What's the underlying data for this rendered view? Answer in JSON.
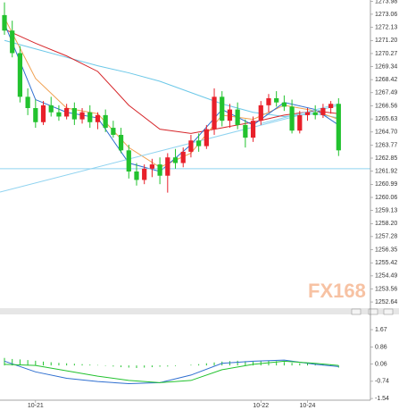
{
  "chart_data": [
    {
      "type": "candlestick",
      "up_color": "#e8202a",
      "down_color": "#22c22e",
      "xlim": [
        -0.575,
        47.1
      ],
      "ylim": [
        1252.2,
        1274.07
      ],
      "yticks": [
        1273.98,
        1273.06,
        1272.13,
        {
          "value": 1271.2,
          "label": "1271.20"
        },
        1270.27,
        1269.34,
        1268.42,
        1267.49,
        1266.56,
        1265.63,
        {
          "value": 1264.7,
          "label": "1264.70"
        },
        1263.77,
        1262.85,
        1261.92,
        1260.99,
        1260.06,
        1259.13,
        {
          "value": 1258.2,
          "label": "1258.20"
        },
        1257.28,
        1256.35,
        1255.42,
        1254.49,
        1253.56,
        1252.64
      ],
      "open": [
        1273.0,
        1271.9,
        1270.3,
        1267.2,
        1266.4,
        1265.4,
        1266.6,
        1266.1,
        1265.8,
        1266.4,
        1265.6,
        1266.1,
        1265.4,
        1265.9,
        1265.0,
        1264.5,
        1263.4,
        1261.9,
        1261.3,
        1262.1,
        1262.4,
        1261.6,
        1262.9,
        1262.5,
        1263.3,
        1264.1,
        1263.7,
        1264.9,
        1267.2,
        1265.5,
        1266.3,
        1265.2,
        1264.3,
        1265.5,
        1266.6,
        1267.1,
        1266.8,
        1266.5,
        1264.8,
        1265.9,
        1266.1,
        1265.9,
        1266.4,
        1266.7
      ],
      "high": [
        1273.9,
        1272.6,
        1270.8,
        1267.8,
        1267.0,
        1266.9,
        1267.2,
        1266.6,
        1266.7,
        1266.8,
        1266.4,
        1266.6,
        1266.1,
        1266.3,
        1265.5,
        1265.0,
        1263.8,
        1262.5,
        1262.4,
        1262.8,
        1262.9,
        1263.2,
        1263.5,
        1263.6,
        1264.5,
        1264.6,
        1265.2,
        1267.8,
        1267.6,
        1266.7,
        1266.8,
        1265.6,
        1265.8,
        1266.9,
        1267.4,
        1267.6,
        1267.3,
        1267.0,
        1266.2,
        1266.4,
        1266.6,
        1266.7,
        1266.9,
        1267.1
      ],
      "low": [
        1271.6,
        1270.0,
        1266.8,
        1265.9,
        1265.0,
        1265.2,
        1265.8,
        1265.5,
        1265.6,
        1265.2,
        1265.3,
        1265.0,
        1264.9,
        1264.7,
        1264.3,
        1263.2,
        1261.4,
        1260.9,
        1261.0,
        1261.5,
        1261.0,
        1260.4,
        1262.1,
        1262.2,
        1262.9,
        1263.3,
        1263.5,
        1264.5,
        1265.1,
        1265.0,
        1264.9,
        1263.6,
        1264.0,
        1265.2,
        1266.1,
        1266.5,
        1266.2,
        1264.6,
        1264.6,
        1265.5,
        1265.6,
        1265.7,
        1266.0,
        1263.0
      ],
      "close": [
        1271.9,
        1270.3,
        1267.2,
        1266.4,
        1265.4,
        1266.6,
        1266.1,
        1265.8,
        1266.4,
        1265.6,
        1266.1,
        1265.4,
        1265.9,
        1265.0,
        1264.5,
        1263.4,
        1261.9,
        1261.3,
        1262.1,
        1262.4,
        1261.6,
        1262.9,
        1262.5,
        1263.3,
        1264.1,
        1263.7,
        1264.9,
        1267.2,
        1265.5,
        1266.3,
        1265.2,
        1264.3,
        1265.5,
        1266.6,
        1267.1,
        1266.8,
        1266.5,
        1264.8,
        1265.9,
        1266.1,
        1265.9,
        1266.4,
        1266.7,
        1263.4
      ],
      "series": [
        {
          "color": "#6cc8e8",
          "x": [
            0,
            4,
            8,
            12,
            16,
            20,
            24,
            28,
            32,
            36,
            40,
            43
          ],
          "values": [
            1271.2,
            1270.6,
            1270.0,
            1269.4,
            1268.9,
            1268.3,
            1267.5,
            1266.7,
            1266.1,
            1265.8,
            1266.0,
            1265.7
          ]
        },
        {
          "color": "#d6262a",
          "x": [
            0,
            4,
            8,
            12,
            16,
            20,
            24,
            28,
            32,
            36,
            40,
            43
          ],
          "values": [
            1272.0,
            1271.0,
            1270.1,
            1269.0,
            1266.6,
            1264.9,
            1264.6,
            1265.0,
            1265.4,
            1265.9,
            1266.2,
            1266.0
          ]
        },
        {
          "color": "#f0a050",
          "x": [
            0,
            4,
            8,
            12,
            16,
            20,
            24,
            28,
            32,
            36,
            40,
            43
          ],
          "values": [
            1272.8,
            1268.5,
            1266.4,
            1266.0,
            1263.6,
            1262.2,
            1263.2,
            1265.9,
            1265.6,
            1266.6,
            1266.2,
            1265.6
          ]
        },
        {
          "color": "#2f6fd0",
          "x": [
            0,
            4,
            8,
            12,
            16,
            20,
            24,
            28,
            32,
            36,
            40,
            43
          ],
          "values": [
            1272.4,
            1267.0,
            1266.1,
            1265.7,
            1262.5,
            1261.9,
            1263.8,
            1266.3,
            1265.2,
            1266.8,
            1266.3,
            1265.2
          ]
        },
        {
          "color": "#8fd3f0",
          "x": [
            -0.575,
            43
          ],
          "values": [
            1260.44,
            1266.6
          ]
        },
        {
          "color": "#8fd3f0",
          "x": [
            33,
            43
          ],
          "values": [
            1265.3,
            1266.7
          ]
        },
        {
          "color": "#8fd3f0",
          "x": [
            -0.575,
            47.1
          ],
          "values": [
            1262.1,
            1262.1
          ]
        }
      ],
      "watermark": "FX168"
    },
    {
      "type": "macd",
      "xlim": [
        -0.575,
        47.1
      ],
      "ylim": [
        -1.62,
        2.38
      ],
      "yticks": [
        1.67,
        0.86,
        0.06,
        -0.74,
        -1.54
      ],
      "categories": [
        null,
        null,
        null,
        null,
        "10-21",
        null,
        null,
        null,
        null,
        null,
        null,
        null,
        null,
        null,
        null,
        null,
        null,
        null,
        null,
        null,
        null,
        null,
        null,
        null,
        null,
        null,
        null,
        null,
        null,
        null,
        null,
        null,
        null,
        "10-22",
        null,
        null,
        null,
        null,
        null,
        "10-24",
        null,
        null,
        null,
        null
      ],
      "hist_color": "#22c22e",
      "values": [
        0.35,
        0.3,
        0.28,
        0.25,
        0.22,
        0.18,
        0.15,
        0.12,
        0.1,
        0.08,
        0.06,
        0.04,
        0.02,
        -0.02,
        -0.05,
        -0.08,
        -0.1,
        -0.12,
        -0.1,
        -0.08,
        -0.06,
        -0.05,
        -0.03,
        0,
        0.03,
        0.06,
        0.1,
        0.14,
        0.18,
        0.2,
        0.22,
        0.2,
        0.18,
        0.2,
        0.22,
        0.2,
        0.16,
        0.12,
        0.1,
        0.12,
        0.1,
        0.08,
        0.05,
        -0.1
      ],
      "series": [
        {
          "color": "#2f6fd0",
          "x": [
            0,
            4,
            8,
            12,
            16,
            20,
            24,
            28,
            32,
            36,
            40,
            43
          ],
          "values": [
            0.2,
            -0.3,
            -0.6,
            -0.75,
            -0.85,
            -0.8,
            -0.45,
            0.1,
            0.2,
            0.25,
            0.05,
            -0.05
          ]
        },
        {
          "color": "#22c22e",
          "x": [
            0,
            4,
            8,
            12,
            16,
            20,
            24,
            28,
            32,
            36,
            40,
            43
          ],
          "values": [
            0.05,
            0.0,
            -0.25,
            -0.5,
            -0.7,
            -0.8,
            -0.7,
            -0.2,
            0.05,
            0.2,
            0.1,
            0.0
          ]
        }
      ]
    }
  ]
}
